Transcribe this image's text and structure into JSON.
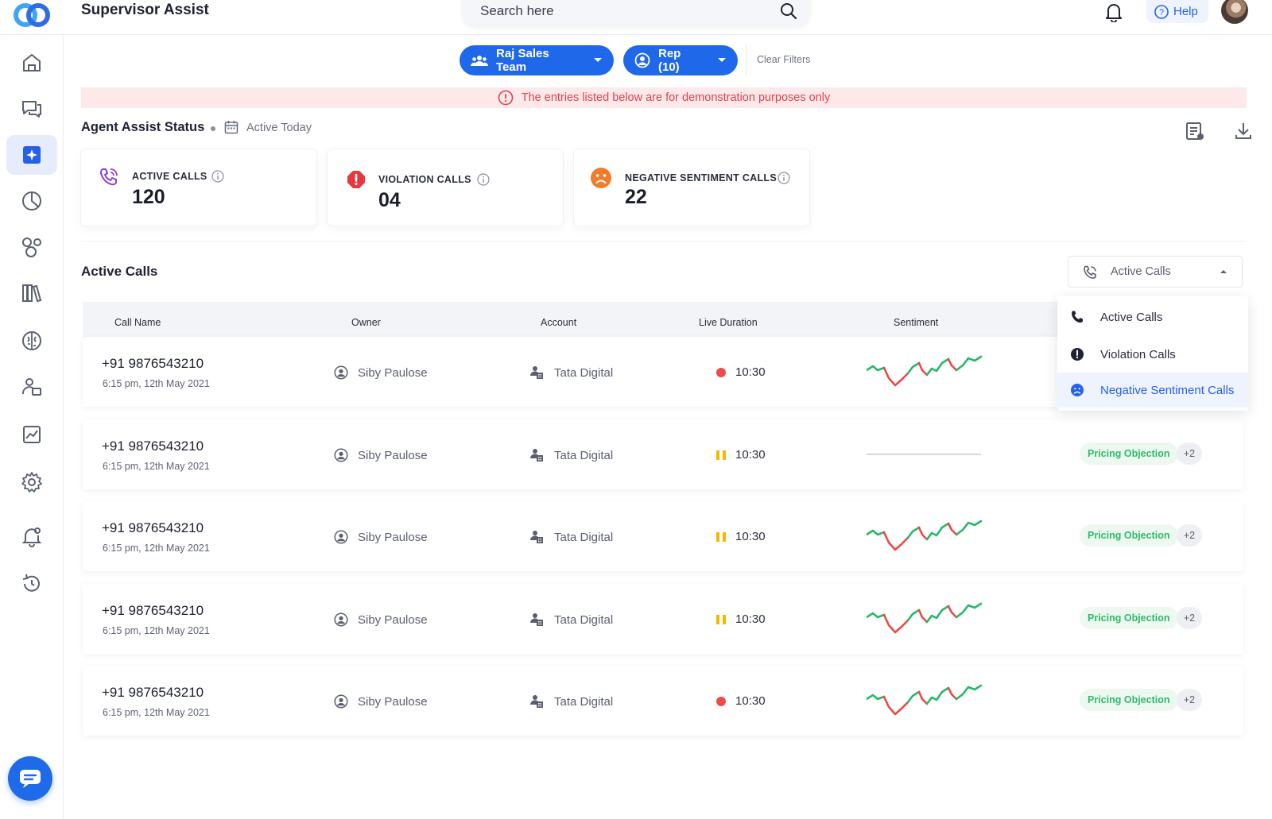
{
  "app": {
    "title": "Supervisor Assist"
  },
  "search": {
    "placeholder": "Search here"
  },
  "header": {
    "help_label": "Help"
  },
  "sidebar": {
    "items": [
      "home-icon",
      "chat-icon",
      "agent-assist-icon",
      "pie-chart-icon",
      "bubbles-icon",
      "library-icon",
      "brain-icon",
      "people-icon",
      "trend-icon",
      "settings-icon",
      "alert-icon",
      "history-icon"
    ],
    "active": "agent-assist-icon"
  },
  "filters": {
    "team_label": "Raj Sales Team",
    "rep_label": "Rep (10)",
    "clear_label": "Clear Filters"
  },
  "banner": {
    "text": "The entries listed below are for demonstration purposes only"
  },
  "status": {
    "title": "Agent Assist Status",
    "subtitle": "Active Today"
  },
  "kpis": [
    {
      "label": "ACTIVE CALLS",
      "value": "120",
      "color": "#8b3fd6"
    },
    {
      "label": "VIOLATION CALLS",
      "value": "04",
      "color": "#e8383f"
    },
    {
      "label": "NEGATIVE SENTIMENT CALLS",
      "value": "22",
      "color": "#f07d2c"
    }
  ],
  "active_calls": {
    "title": "Active Calls",
    "select_value": "Active Calls",
    "dropdown": [
      "Active Calls",
      "Violation Calls",
      "Negative Sentiment Calls"
    ],
    "dropdown_selected": "Negative Sentiment Calls",
    "columns": [
      "Call Name",
      "Owner",
      "Account",
      "Live Duration",
      "Sentiment"
    ],
    "rows": [
      {
        "phone": "+91 9876543210",
        "time": "6:15 pm, 12th May 2021",
        "owner": "Siby Paulose",
        "account": "Tata Digital",
        "duration": "10:30",
        "status": "live",
        "sentiment": "wave",
        "tag": "",
        "more": ""
      },
      {
        "phone": "+91 9876543210",
        "time": "6:15 pm, 12th May 2021",
        "owner": "Siby Paulose",
        "account": "Tata Digital",
        "duration": "10:30",
        "status": "paused",
        "sentiment": "flat",
        "tag": "Pricing Objection",
        "more": "+2"
      },
      {
        "phone": "+91 9876543210",
        "time": "6:15 pm, 12th May 2021",
        "owner": "Siby Paulose",
        "account": "Tata Digital",
        "duration": "10:30",
        "status": "paused",
        "sentiment": "wave",
        "tag": "Pricing Objection",
        "more": "+2"
      },
      {
        "phone": "+91 9876543210",
        "time": "6:15 pm, 12th May 2021",
        "owner": "Siby Paulose",
        "account": "Tata Digital",
        "duration": "10:30",
        "status": "paused",
        "sentiment": "wave",
        "tag": "Pricing Objection",
        "more": "+2"
      },
      {
        "phone": "+91 9876543210",
        "time": "6:15 pm, 12th May 2021",
        "owner": "Siby Paulose",
        "account": "Tata Digital",
        "duration": "10:30",
        "status": "live",
        "sentiment": "wave",
        "tag": "Pricing Objection",
        "more": "+2"
      }
    ]
  },
  "colors": {
    "accent": "#1f68ea",
    "positive": "#27b766",
    "negative": "#ef4747",
    "live": "#ef4a4a",
    "paused": "#f5b800"
  }
}
